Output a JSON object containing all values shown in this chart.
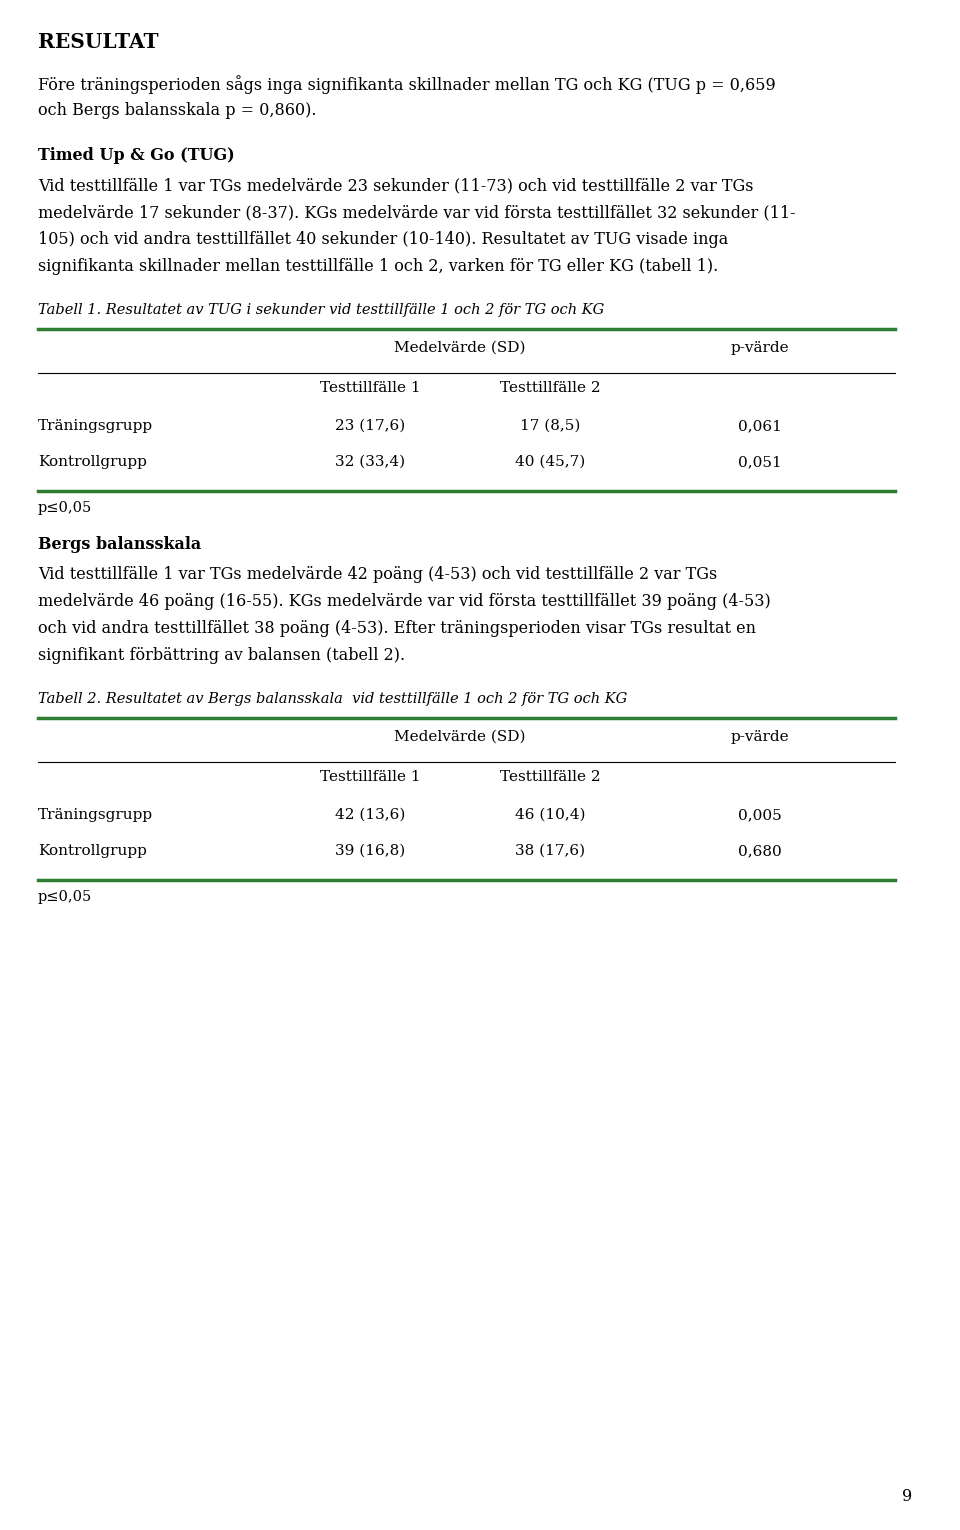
{
  "title": "RESULTAT",
  "background_color": "#ffffff",
  "text_color": "#000000",
  "page_number": "9",
  "green_color": "#2e7d32",
  "body_fontsize": 11.5,
  "title_fontsize": 14.5,
  "section_title_fontsize": 11.5,
  "caption_fontsize": 10.5,
  "table_fontsize": 11.0,
  "footnote_fontsize": 10.5,
  "para1_lines": [
    "Före träningsperioden sågs inga signifikanta skillnader mellan TG och KG (TUG p = 0,659",
    "och Bergs balansskala p = 0,860)."
  ],
  "section1_title": "Timed Up & Go (TUG)",
  "section1_lines": [
    "Vid testtillfälle 1 var TGs medelvärde 23 sekunder (11-73) och vid testtillfälle 2 var TGs",
    "medelvärde 17 sekunder (8-37). KGs medelvärde var vid första testtillfället 32 sekunder (11-",
    "105) och vid andra testtillfället 40 sekunder (10-140). Resultatet av TUG visade inga",
    "signifikanta skillnader mellan testtillfälle 1 och 2, varken för TG eller KG (tabell 1)."
  ],
  "table1_caption": "Tabell 1. Resultatet av TUG i sekunder vid testtillfälle 1 och 2 för TG och KG",
  "table1_header_main": "Medelvärde (SD)",
  "table1_header_sub1": "Testtillfälle 1",
  "table1_header_sub2": "Testtillfälle 2",
  "table1_header_p": "p-värde",
  "table1_rows": [
    [
      "Träningsgrupp",
      "23 (17,6)",
      "17 (8,5)",
      "0,061"
    ],
    [
      "Kontrollgrupp",
      "32 (33,4)",
      "40 (45,7)",
      "0,051"
    ]
  ],
  "table1_footnote": "p≤0,05",
  "section2_title": "Bergs balansskala",
  "section2_lines": [
    "Vid testtillfälle 1 var TGs medelvärde 42 poäng (4-53) och vid testtillfälle 2 var TGs",
    "medelvärde 46 poäng (16-55). KGs medelvärde var vid första testtillfället 39 poäng (4-53)",
    "och vid andra testtillfället 38 poäng (4-53). Efter träningsperioden visar TGs resultat en",
    "signifikant förbättring av balansen (tabell 2)."
  ],
  "table2_caption": "Tabell 2. Resultatet av Bergs balansskala  vid testtillfälle 1 och 2 för TG och KG",
  "table2_header_main": "Medelvärde (SD)",
  "table2_header_sub1": "Testtillfälle 1",
  "table2_header_sub2": "Testtillfälle 2",
  "table2_header_p": "p-värde",
  "table2_rows": [
    [
      "Träningsgrupp",
      "42 (13,6)",
      "46 (10,4)",
      "0,005"
    ],
    [
      "Kontrollgrupp",
      "39 (16,8)",
      "38 (17,6)",
      "0,680"
    ]
  ],
  "table2_footnote": "p≤0,05"
}
